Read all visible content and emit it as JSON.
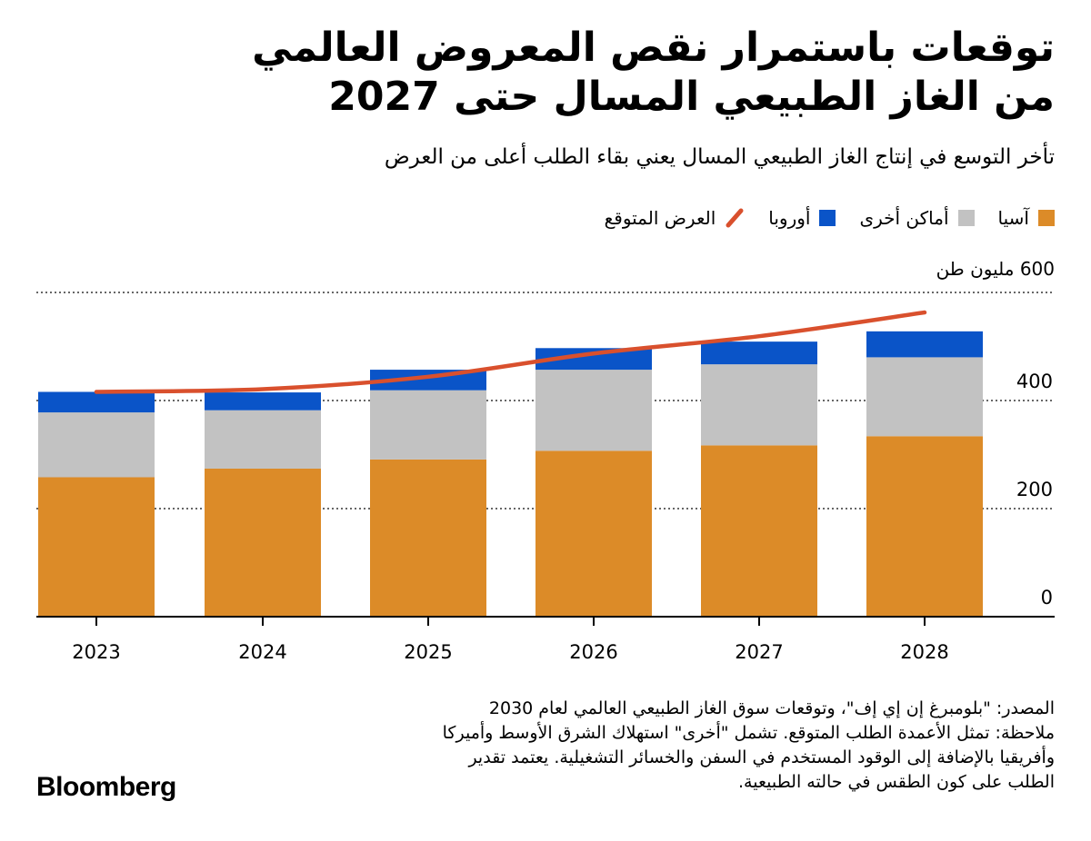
{
  "header": {
    "title_line1": "توقعات باستمرار نقص المعروض العالمي",
    "title_line2": "من الغاز الطبيعي المسال حتى 2027",
    "subtitle": "تأخر التوسع في إنتاج الغاز الطبيعي المسال يعني بقاء الطلب أعلى من العرض"
  },
  "legend": {
    "asia": "آسيا",
    "other": "أماكن أخرى",
    "europe": "أوروبا",
    "supply": "العرض المتوقع"
  },
  "colors": {
    "asia": "#dc8b28",
    "europe": "#0a54c8",
    "other": "#c2c2c2",
    "supply": "#d9502d"
  },
  "chart_data": {
    "type": "bar",
    "stacked": true,
    "categories": [
      "2023",
      "2024",
      "2025",
      "2026",
      "2027",
      "2028"
    ],
    "series": [
      {
        "name": "آسيا",
        "key": "asia",
        "values": [
          258,
          274,
          291,
          307,
          317,
          334
        ]
      },
      {
        "name": "أماكن أخرى",
        "key": "other",
        "values": [
          120,
          108,
          128,
          150,
          150,
          146
        ]
      },
      {
        "name": "أوروبا",
        "key": "europe",
        "values": [
          38,
          33,
          38,
          40,
          42,
          48
        ]
      }
    ],
    "line_series": {
      "name": "العرض المتوقع",
      "key": "supply",
      "values": [
        416,
        421,
        444,
        487,
        519,
        563
      ]
    },
    "unit_label": "600 مليون طن",
    "y_ticks": [
      "0",
      "200",
      "400"
    ],
    "ylim": [
      0,
      600
    ],
    "grid": true,
    "legend_position": "top-right"
  },
  "footnotes": {
    "source": "المصدر: \"بلومبرغ إن إي إف\"، وتوقعات سوق الغاز الطبيعي العالمي لعام 2030",
    "note_line1": "ملاحظة: تمثل الأعمدة الطلب المتوقع. تشمل \"أخرى\" استهلاك الشرق الأوسط وأميركا",
    "note_line2": "وأفريقيا بالإضافة إلى الوقود المستخدم في السفن والخسائر التشغيلية. يعتمد تقدير",
    "note_line3": "الطلب على كون الطقس في حالته الطبيعية."
  },
  "brand": "Bloomberg"
}
